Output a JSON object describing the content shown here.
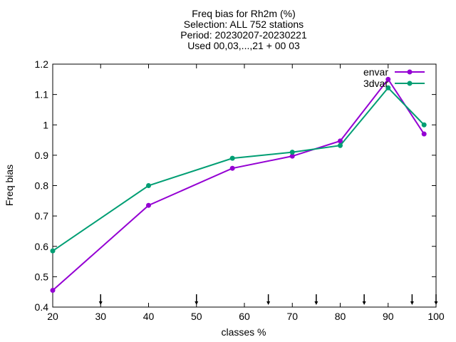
{
  "chart_data": {
    "type": "line",
    "title_lines": [
      "Freq bias  for Rh2m (%)",
      "Selection: ALL    752 stations",
      "Period: 20230207-20230221",
      "Used 00,03,...,21 + 00 03"
    ],
    "xlabel": "classes %",
    "ylabel": "Freq bias",
    "xlim": [
      20,
      100
    ],
    "ylim": [
      0.4,
      1.2
    ],
    "xticks": [
      20,
      30,
      40,
      50,
      60,
      70,
      80,
      90,
      100
    ],
    "xtick_labels": [
      "20",
      "30",
      "40",
      "50",
      "60",
      "70",
      "80",
      "90",
      "100"
    ],
    "yticks": [
      0.4,
      0.5,
      0.6,
      0.7,
      0.8,
      0.9,
      1.0,
      1.1,
      1.2
    ],
    "ytick_labels": [
      "0.4",
      "0.5",
      "0.6",
      "0.7",
      "0.8",
      "0.9",
      "1",
      "1.1",
      "1.2"
    ],
    "class_markers": [
      30,
      50,
      65,
      75,
      85,
      95,
      100
    ],
    "legend_position": "top-right",
    "grid": false,
    "series": [
      {
        "name": "envar",
        "color": "#9400d3",
        "x": [
          20,
          40,
          57.5,
          70,
          80,
          90,
          97.5
        ],
        "y": [
          0.455,
          0.735,
          0.857,
          0.897,
          0.947,
          1.15,
          0.97
        ]
      },
      {
        "name": "3dvar",
        "color": "#009e73",
        "x": [
          20,
          40,
          57.5,
          70,
          80,
          90,
          97.5
        ],
        "y": [
          0.585,
          0.8,
          0.89,
          0.91,
          0.932,
          1.122,
          1.0
        ]
      }
    ]
  }
}
